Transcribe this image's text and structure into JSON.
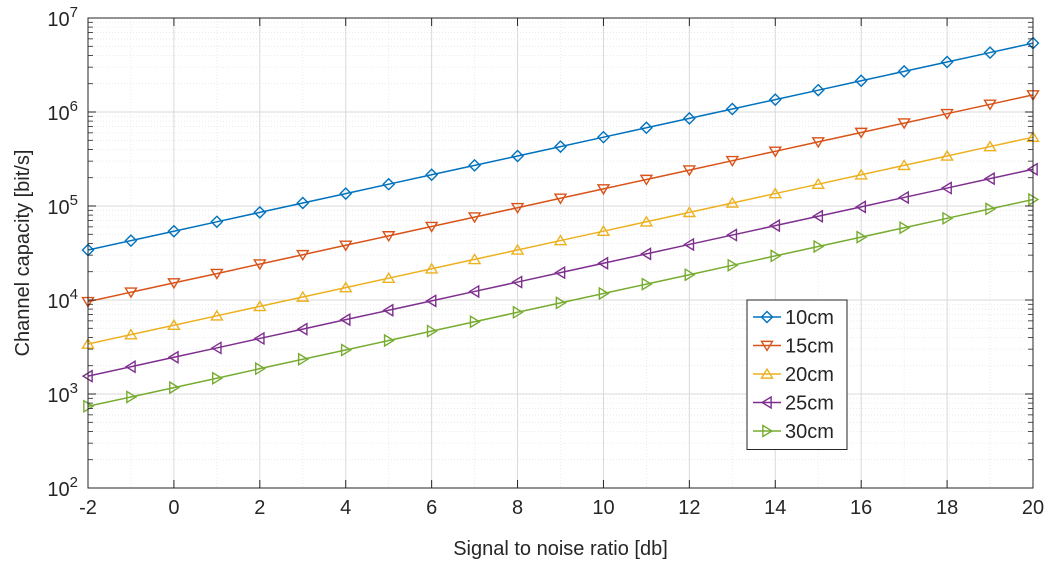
{
  "chart_data": {
    "type": "line",
    "title": "",
    "xlabel": "Signal to noise ratio [db]",
    "ylabel": "Channel capacity [bit/s]",
    "xlim": [
      -2,
      20
    ],
    "ylim": [
      100,
      10000000
    ],
    "yscale": "log",
    "grid": true,
    "legend_position": "lower-right",
    "x_ticks": [
      -2,
      0,
      2,
      4,
      6,
      8,
      10,
      12,
      14,
      16,
      18,
      20
    ],
    "x_tick_labels": [
      "-2",
      "0",
      "2",
      "4",
      "6",
      "8",
      "10",
      "12",
      "14",
      "16",
      "18",
      "20"
    ],
    "y_tick_exponents": [
      2,
      3,
      4,
      5,
      6,
      7
    ],
    "y_tick_base": "10",
    "x": [
      -2,
      -1,
      0,
      1,
      2,
      3,
      4,
      5,
      6,
      7,
      8,
      9,
      10,
      11,
      12,
      13,
      14,
      15,
      16,
      17,
      18,
      19,
      20
    ],
    "series": [
      {
        "name": "10cm",
        "color": "#0072BD",
        "marker": "diamond",
        "values": [
          34000,
          42800,
          53900,
          67900,
          85500,
          107600,
          135500,
          170600,
          214800,
          270400,
          340400,
          428600,
          539600,
          679300,
          855200,
          1076700,
          1355500,
          1706500,
          2148400,
          2704800,
          3405200,
          4287000,
          5397100
        ]
      },
      {
        "name": "15cm",
        "color": "#D95319",
        "marker": "triangle-down",
        "values": [
          9600,
          12100,
          15200,
          19100,
          24100,
          30300,
          38200,
          48100,
          60500,
          76200,
          95900,
          120800,
          152000,
          191400,
          241000,
          303400,
          381900,
          480800,
          605300,
          762000,
          959300,
          1207700,
          1520300
        ]
      },
      {
        "name": "20cm",
        "color": "#EDB120",
        "marker": "triangle-up",
        "values": [
          3400,
          4280,
          5390,
          6790,
          8550,
          10760,
          13550,
          17060,
          21480,
          27040,
          34050,
          42870,
          53970,
          67940,
          85530,
          107680,
          135560,
          170660,
          214850,
          270480,
          340520,
          428700,
          539710
        ]
      },
      {
        "name": "25cm",
        "color": "#7E2F8E",
        "marker": "triangle-left",
        "values": [
          1550,
          1950,
          2460,
          3090,
          3900,
          4900,
          6180,
          7780,
          9790,
          12330,
          15520,
          19540,
          24600,
          30970,
          38990,
          49090,
          61800,
          77800,
          97950,
          123310,
          155240,
          195440,
          246040
        ]
      },
      {
        "name": "30cm",
        "color": "#77AC30",
        "marker": "triangle-right",
        "values": [
          740,
          930,
          1170,
          1470,
          1860,
          2340,
          2940,
          3710,
          4670,
          5870,
          7400,
          9310,
          11720,
          14760,
          18580,
          23390,
          29440,
          37070,
          46670,
          58750,
          73960,
          93110,
          117220
        ]
      }
    ]
  }
}
